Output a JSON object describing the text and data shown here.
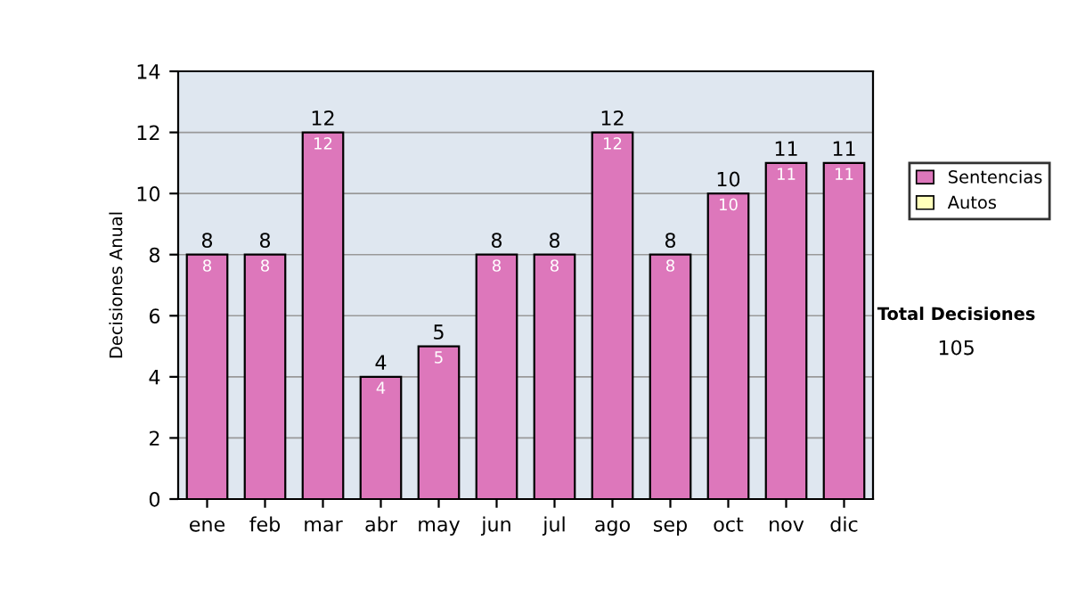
{
  "chart_data": {
    "type": "bar",
    "stacked": true,
    "ylabel": "Decisiones Anual",
    "categories": [
      "ene",
      "feb",
      "mar",
      "abr",
      "may",
      "jun",
      "jul",
      "ago",
      "sep",
      "oct",
      "nov",
      "dic"
    ],
    "series": [
      {
        "name": "Sentencias",
        "color": "#dd77bb",
        "values": [
          8,
          8,
          12,
          4,
          5,
          8,
          8,
          12,
          8,
          10,
          11,
          11
        ],
        "value_labels": [
          "8",
          "8",
          "12",
          "4",
          "5",
          "8",
          "8",
          "12",
          "8",
          "10",
          "11",
          "11"
        ]
      },
      {
        "name": "Autos",
        "color": "#ffffbb",
        "values": [
          0,
          0,
          0,
          0,
          0,
          0,
          0,
          0,
          0,
          0,
          0,
          0
        ]
      }
    ],
    "totals": [
      "8",
      "8",
      "12",
      "4",
      "5",
      "8",
      "8",
      "12",
      "8",
      "10",
      "11",
      "11"
    ],
    "ylim": [
      0,
      14
    ],
    "yticks": [
      0,
      2,
      4,
      6,
      8,
      10,
      12,
      14
    ],
    "grid": "y",
    "legend": "right",
    "annotations": [
      "Total Decisiones",
      "105"
    ]
  }
}
